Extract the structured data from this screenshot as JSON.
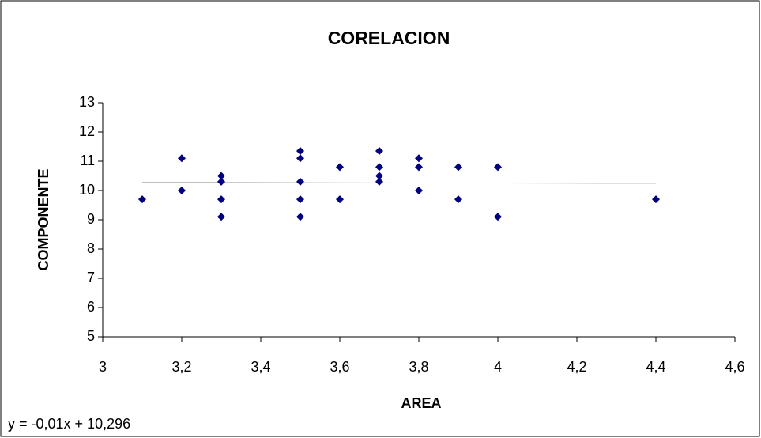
{
  "chart_data": {
    "type": "scatter",
    "title": "CORELACION",
    "x_label": "AREA",
    "y_label": "COMPONENTE",
    "x": [
      3.1,
      3.2,
      3.2,
      3.3,
      3.3,
      3.3,
      3.3,
      3.5,
      3.5,
      3.5,
      3.5,
      3.5,
      3.6,
      3.6,
      3.7,
      3.7,
      3.7,
      3.7,
      3.8,
      3.8,
      3.8,
      3.9,
      3.9,
      4.0,
      4.0,
      4.4
    ],
    "values": [
      9.7,
      11.1,
      10.0,
      10.5,
      10.3,
      9.7,
      9.1,
      11.35,
      11.1,
      10.3,
      9.7,
      9.1,
      10.8,
      9.7,
      11.35,
      10.8,
      10.5,
      10.3,
      11.1,
      10.8,
      10.0,
      10.8,
      9.7,
      10.8,
      9.1,
      9.7
    ],
    "color": "#000080",
    "xlim": [
      3,
      4.6
    ],
    "xticks": [
      3,
      {
        "value": 3.2,
        "label": "3,2"
      },
      {
        "value": 3.4,
        "label": "3,4"
      },
      {
        "value": 3.6,
        "label": "3,6"
      },
      {
        "value": 3.8,
        "label": "3,8"
      },
      4,
      {
        "value": 4.2,
        "label": "4,2"
      },
      {
        "value": 4.4,
        "label": "4,4"
      },
      {
        "value": 4.6,
        "label": "4,6"
      }
    ],
    "ylim": [
      5,
      13
    ],
    "yticks": [
      5,
      6,
      7,
      8,
      9,
      10,
      11,
      12,
      13
    ],
    "trendline": {
      "label": "y = -0,01x + 10,296",
      "slope": -0.01,
      "intercept": 10.296
    }
  }
}
